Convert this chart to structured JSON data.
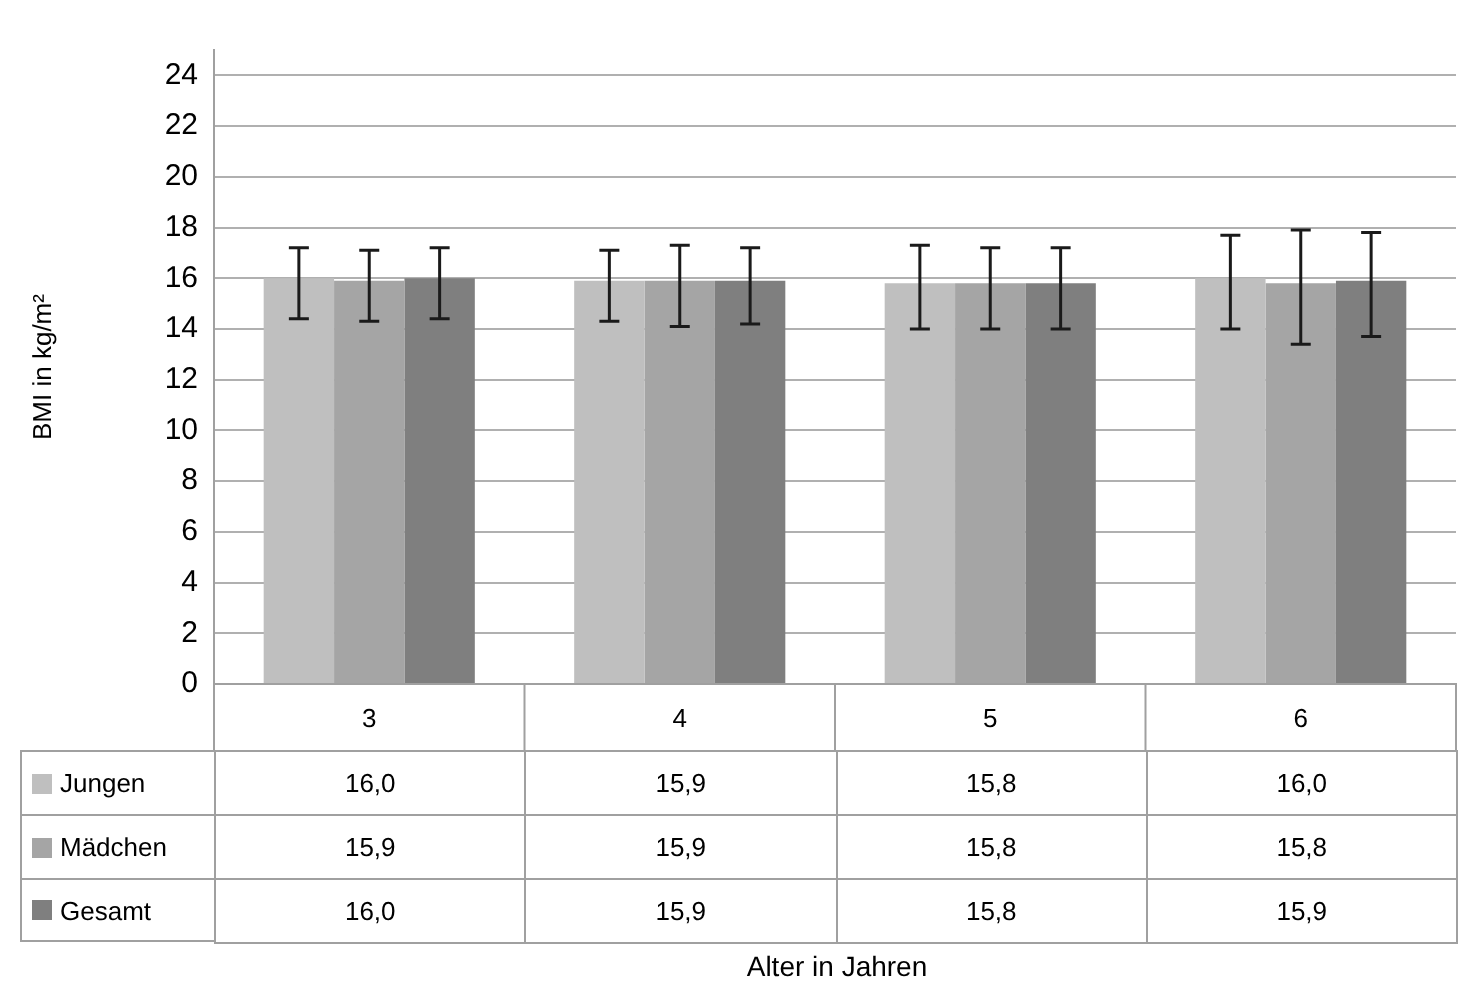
{
  "chart_data": {
    "type": "bar",
    "ylabel": "BMI in kg/m²",
    "annotations": [
      "Alter in Jahren"
    ],
    "categories": [
      "3",
      "4",
      "5",
      "6"
    ],
    "series": [
      {
        "name": "Jungen",
        "color": "#bfbfbf",
        "values": [
          16.0,
          15.9,
          15.8,
          16.0
        ],
        "value_labels": [
          "16,0",
          "15,9",
          "15,8",
          "16,0"
        ],
        "errors": [
          [
            14.4,
            17.2
          ],
          [
            14.3,
            17.1
          ],
          [
            14.0,
            17.3
          ],
          [
            14.0,
            17.7
          ]
        ]
      },
      {
        "name": "Mädchen",
        "color": "#a5a5a5",
        "values": [
          15.9,
          15.9,
          15.8,
          15.8
        ],
        "value_labels": [
          "15,9",
          "15,9",
          "15,8",
          "15,8"
        ],
        "errors": [
          [
            14.3,
            17.1
          ],
          [
            14.1,
            17.3
          ],
          [
            14.0,
            17.2
          ],
          [
            13.4,
            17.9
          ]
        ]
      },
      {
        "name": "Gesamt",
        "color": "#7f7f7f",
        "values": [
          16.0,
          15.9,
          15.8,
          15.9
        ],
        "value_labels": [
          "16,0",
          "15,9",
          "15,8",
          "15,9"
        ],
        "errors": [
          [
            14.4,
            17.2
          ],
          [
            14.2,
            17.2
          ],
          [
            14.0,
            17.2
          ],
          [
            13.7,
            17.8
          ]
        ]
      }
    ],
    "ylim": [
      0,
      25
    ],
    "yticks": [
      0,
      2,
      4,
      6,
      8,
      10,
      12,
      14,
      16,
      18,
      20,
      22,
      24
    ],
    "grid": "y",
    "legend": "bottom left"
  }
}
